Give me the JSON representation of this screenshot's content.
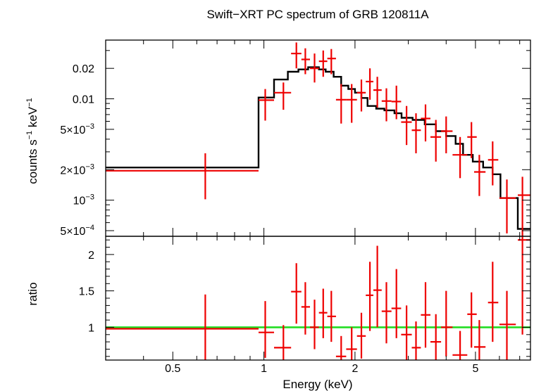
{
  "chart_data": {
    "type": "scatter",
    "title": "Swift−XRT PC spectrum of GRB 120811A",
    "xlabel": "Energy (keV)",
    "x_scale": "log",
    "xlim": [
      0.3,
      7.6
    ],
    "x_ticks": [
      {
        "value": 0.5,
        "label": "0.5"
      },
      {
        "value": 1,
        "label": "1"
      },
      {
        "value": 2,
        "label": "2"
      },
      {
        "value": 5,
        "label": "5"
      }
    ],
    "panels": [
      {
        "id": "spectrum",
        "ylabel_parts": [
          "counts s",
          "−1",
          " keV",
          "−1"
        ],
        "y_scale": "log",
        "ylim": [
          0.00044,
          0.038
        ],
        "y_ticks": [
          {
            "value": 0.02,
            "label": "0.02"
          },
          {
            "value": 0.01,
            "label": "0.01"
          },
          {
            "value": 0.005,
            "label": "5×10",
            "sup": "−3"
          },
          {
            "value": 0.002,
            "label": "2×10",
            "sup": "−3"
          },
          {
            "value": 0.001,
            "label": "10",
            "sup": "−3"
          },
          {
            "value": 0.0005,
            "label": "5×10",
            "sup": "−4"
          }
        ],
        "data": [
          {
            "x": 0.64,
            "xlo": 0.3,
            "xhi": 0.96,
            "y": 0.00195,
            "ylo": 0.00102,
            "yhi": 0.0029
          },
          {
            "x": 1.01,
            "xlo": 0.96,
            "xhi": 1.08,
            "y": 0.0097,
            "ylo": 0.0061,
            "yhi": 0.0125
          },
          {
            "x": 1.16,
            "xlo": 1.08,
            "xhi": 1.23,
            "y": 0.0115,
            "ylo": 0.0078,
            "yhi": 0.0145
          },
          {
            "x": 1.28,
            "xlo": 1.23,
            "xhi": 1.33,
            "y": 0.028,
            "ylo": 0.02,
            "yhi": 0.036
          },
          {
            "x": 1.37,
            "xlo": 1.33,
            "xhi": 1.42,
            "y": 0.0245,
            "ylo": 0.0175,
            "yhi": 0.0315
          },
          {
            "x": 1.47,
            "xlo": 1.42,
            "xhi": 1.52,
            "y": 0.02,
            "ylo": 0.0145,
            "yhi": 0.028
          },
          {
            "x": 1.57,
            "xlo": 1.52,
            "xhi": 1.62,
            "y": 0.0235,
            "ylo": 0.0165,
            "yhi": 0.03
          },
          {
            "x": 1.67,
            "xlo": 1.62,
            "xhi": 1.73,
            "y": 0.025,
            "ylo": 0.0175,
            "yhi": 0.031
          },
          {
            "x": 1.8,
            "xlo": 1.73,
            "xhi": 1.87,
            "y": 0.0098,
            "ylo": 0.0057,
            "yhi": 0.014
          },
          {
            "x": 1.95,
            "xlo": 1.87,
            "xhi": 2.03,
            "y": 0.0098,
            "ylo": 0.0058,
            "yhi": 0.014
          },
          {
            "x": 2.1,
            "xlo": 2.03,
            "xhi": 2.17,
            "y": 0.0115,
            "ylo": 0.0075,
            "yhi": 0.0155
          },
          {
            "x": 2.24,
            "xlo": 2.17,
            "xhi": 2.3,
            "y": 0.0148,
            "ylo": 0.0098,
            "yhi": 0.02
          },
          {
            "x": 2.37,
            "xlo": 2.3,
            "xhi": 2.45,
            "y": 0.0122,
            "ylo": 0.0082,
            "yhi": 0.0165
          },
          {
            "x": 2.54,
            "xlo": 2.45,
            "xhi": 2.64,
            "y": 0.0095,
            "ylo": 0.006,
            "yhi": 0.0127
          },
          {
            "x": 2.74,
            "xlo": 2.64,
            "xhi": 2.84,
            "y": 0.0094,
            "ylo": 0.0063,
            "yhi": 0.0135
          },
          {
            "x": 2.96,
            "xlo": 2.84,
            "xhi": 3.08,
            "y": 0.0059,
            "ylo": 0.0035,
            "yhi": 0.0085
          },
          {
            "x": 3.18,
            "xlo": 3.08,
            "xhi": 3.3,
            "y": 0.0049,
            "ylo": 0.0029,
            "yhi": 0.0072
          },
          {
            "x": 3.42,
            "xlo": 3.3,
            "xhi": 3.55,
            "y": 0.0064,
            "ylo": 0.0038,
            "yhi": 0.0088
          },
          {
            "x": 3.7,
            "xlo": 3.55,
            "xhi": 3.85,
            "y": 0.0042,
            "ylo": 0.0024,
            "yhi": 0.0062
          },
          {
            "x": 4.0,
            "xlo": 3.85,
            "xhi": 4.2,
            "y": 0.0048,
            "ylo": 0.0029,
            "yhi": 0.0067
          },
          {
            "x": 4.45,
            "xlo": 4.2,
            "xhi": 4.7,
            "y": 0.0028,
            "ylo": 0.00165,
            "yhi": 0.0042
          },
          {
            "x": 4.85,
            "xlo": 4.7,
            "xhi": 5.05,
            "y": 0.0042,
            "ylo": 0.0026,
            "yhi": 0.0059
          },
          {
            "x": 5.15,
            "xlo": 4.95,
            "xhi": 5.4,
            "y": 0.0019,
            "ylo": 0.0011,
            "yhi": 0.0028
          },
          {
            "x": 5.7,
            "xlo": 5.5,
            "xhi": 5.95,
            "y": 0.0025,
            "ylo": 0.0014,
            "yhi": 0.0038
          },
          {
            "x": 6.35,
            "xlo": 6.0,
            "xhi": 6.8,
            "y": 0.00105,
            "ylo": 0.00047,
            "yhi": 0.0016
          },
          {
            "x": 7.15,
            "xlo": 6.9,
            "xhi": 7.6,
            "y": 0.00112,
            "ylo": 0.00044,
            "yhi": 0.0017
          }
        ],
        "model_steps": [
          {
            "x0": 0.3,
            "x1": 0.96,
            "y": 0.0021
          },
          {
            "x0": 0.96,
            "x1": 1.08,
            "y": 0.0103
          },
          {
            "x0": 1.08,
            "x1": 1.2,
            "y": 0.0155
          },
          {
            "x0": 1.2,
            "x1": 1.3,
            "y": 0.0185
          },
          {
            "x0": 1.3,
            "x1": 1.4,
            "y": 0.0195
          },
          {
            "x0": 1.4,
            "x1": 1.52,
            "y": 0.0205
          },
          {
            "x0": 1.52,
            "x1": 1.6,
            "y": 0.0195
          },
          {
            "x0": 1.6,
            "x1": 1.7,
            "y": 0.0185
          },
          {
            "x0": 1.7,
            "x1": 1.8,
            "y": 0.0165
          },
          {
            "x0": 1.8,
            "x1": 1.9,
            "y": 0.0135
          },
          {
            "x0": 1.9,
            "x1": 2.0,
            "y": 0.0125
          },
          {
            "x0": 2.0,
            "x1": 2.1,
            "y": 0.0115
          },
          {
            "x0": 2.1,
            "x1": 2.2,
            "y": 0.0102
          },
          {
            "x0": 2.2,
            "x1": 2.35,
            "y": 0.0085
          },
          {
            "x0": 2.35,
            "x1": 2.5,
            "y": 0.008
          },
          {
            "x0": 2.5,
            "x1": 2.7,
            "y": 0.0077
          },
          {
            "x0": 2.7,
            "x1": 2.85,
            "y": 0.0072
          },
          {
            "x0": 2.85,
            "x1": 3.1,
            "y": 0.0065
          },
          {
            "x0": 3.1,
            "x1": 3.4,
            "y": 0.0062
          },
          {
            "x0": 3.4,
            "x1": 3.7,
            "y": 0.0056
          },
          {
            "x0": 3.7,
            "x1": 4.0,
            "y": 0.0048
          },
          {
            "x0": 4.0,
            "x1": 4.3,
            "y": 0.0043
          },
          {
            "x0": 4.3,
            "x1": 4.55,
            "y": 0.0036
          },
          {
            "x0": 4.55,
            "x1": 4.9,
            "y": 0.0028
          },
          {
            "x0": 4.9,
            "x1": 5.3,
            "y": 0.0024
          },
          {
            "x0": 5.3,
            "x1": 5.7,
            "y": 0.0021
          },
          {
            "x0": 5.7,
            "x1": 6.05,
            "y": 0.0018
          },
          {
            "x0": 6.05,
            "x1": 6.9,
            "y": 0.00105
          },
          {
            "x0": 6.9,
            "x1": 7.6,
            "y": 0.00052
          }
        ]
      },
      {
        "id": "ratio",
        "ylabel": "ratio",
        "y_scale": "linear",
        "ylim": [
          0.55,
          2.25
        ],
        "y_ticks": [
          {
            "value": 1,
            "label": "1"
          },
          {
            "value": 1.5,
            "label": "1.5"
          },
          {
            "value": 2,
            "label": "2"
          }
        ],
        "reference_y": 1,
        "data": [
          {
            "x": 0.64,
            "xlo": 0.3,
            "xhi": 0.96,
            "y": 0.98,
            "ylo": 0.5,
            "yhi": 1.45
          },
          {
            "x": 1.01,
            "xlo": 0.96,
            "xhi": 1.08,
            "y": 0.93,
            "ylo": 0.58,
            "yhi": 1.36
          },
          {
            "x": 1.16,
            "xlo": 1.08,
            "xhi": 1.23,
            "y": 0.72,
            "ylo": 0.5,
            "yhi": 1.03
          },
          {
            "x": 1.28,
            "xlo": 1.23,
            "xhi": 1.33,
            "y": 1.49,
            "ylo": 1.05,
            "yhi": 1.88
          },
          {
            "x": 1.37,
            "xlo": 1.33,
            "xhi": 1.42,
            "y": 1.28,
            "ylo": 0.9,
            "yhi": 1.62
          },
          {
            "x": 1.47,
            "xlo": 1.42,
            "xhi": 1.52,
            "y": 1.0,
            "ylo": 0.7,
            "yhi": 1.38
          },
          {
            "x": 1.57,
            "xlo": 1.52,
            "xhi": 1.62,
            "y": 1.2,
            "ylo": 0.85,
            "yhi": 1.53
          },
          {
            "x": 1.67,
            "xlo": 1.62,
            "xhi": 1.73,
            "y": 1.15,
            "ylo": 0.8,
            "yhi": 1.5
          },
          {
            "x": 1.8,
            "xlo": 1.73,
            "xhi": 1.87,
            "y": 0.6,
            "ylo": 0.35,
            "yhi": 0.88
          },
          {
            "x": 1.95,
            "xlo": 1.87,
            "xhi": 2.03,
            "y": 0.7,
            "ylo": 0.42,
            "yhi": 1.0
          },
          {
            "x": 2.1,
            "xlo": 2.03,
            "xhi": 2.17,
            "y": 0.88,
            "ylo": 0.57,
            "yhi": 1.2
          },
          {
            "x": 2.24,
            "xlo": 2.17,
            "xhi": 2.3,
            "y": 1.44,
            "ylo": 0.95,
            "yhi": 1.9
          },
          {
            "x": 2.37,
            "xlo": 2.3,
            "xhi": 2.45,
            "y": 1.51,
            "ylo": 1.0,
            "yhi": 2.12
          },
          {
            "x": 2.54,
            "xlo": 2.45,
            "xhi": 2.64,
            "y": 1.22,
            "ylo": 0.78,
            "yhi": 1.62
          },
          {
            "x": 2.74,
            "xlo": 2.64,
            "xhi": 2.84,
            "y": 1.26,
            "ylo": 0.85,
            "yhi": 1.8
          },
          {
            "x": 2.96,
            "xlo": 2.84,
            "xhi": 3.08,
            "y": 0.9,
            "ylo": 0.53,
            "yhi": 1.3
          },
          {
            "x": 3.18,
            "xlo": 3.08,
            "xhi": 3.3,
            "y": 0.72,
            "ylo": 0.43,
            "yhi": 1.08
          },
          {
            "x": 3.42,
            "xlo": 3.3,
            "xhi": 3.55,
            "y": 1.17,
            "ylo": 0.72,
            "yhi": 1.62
          },
          {
            "x": 3.7,
            "xlo": 3.55,
            "xhi": 3.85,
            "y": 0.8,
            "ylo": 0.45,
            "yhi": 1.18
          },
          {
            "x": 4.0,
            "xlo": 3.85,
            "xhi": 4.2,
            "y": 1.0,
            "ylo": 0.6,
            "yhi": 1.5
          },
          {
            "x": 4.45,
            "xlo": 4.2,
            "xhi": 4.7,
            "y": 0.62,
            "ylo": 0.35,
            "yhi": 0.95
          },
          {
            "x": 4.85,
            "xlo": 4.7,
            "xhi": 5.05,
            "y": 1.18,
            "ylo": 0.72,
            "yhi": 1.48
          },
          {
            "x": 5.15,
            "xlo": 4.95,
            "xhi": 5.4,
            "y": 0.73,
            "ylo": 0.42,
            "yhi": 1.1
          },
          {
            "x": 5.7,
            "xlo": 5.5,
            "xhi": 5.95,
            "y": 1.34,
            "ylo": 0.8,
            "yhi": 1.9
          },
          {
            "x": 6.35,
            "xlo": 6.0,
            "xhi": 6.8,
            "y": 1.04,
            "ylo": 0.5,
            "yhi": 1.5
          },
          {
            "x": 7.15,
            "xlo": 6.9,
            "xhi": 7.6,
            "y": 2.2,
            "ylo": 0.9,
            "yhi": 2.3
          }
        ]
      }
    ],
    "colors": {
      "data": "#ee0000",
      "model": "#000000",
      "unity_line": "#22dd22",
      "frame": "#000000"
    },
    "grid": false,
    "legend": "none"
  }
}
